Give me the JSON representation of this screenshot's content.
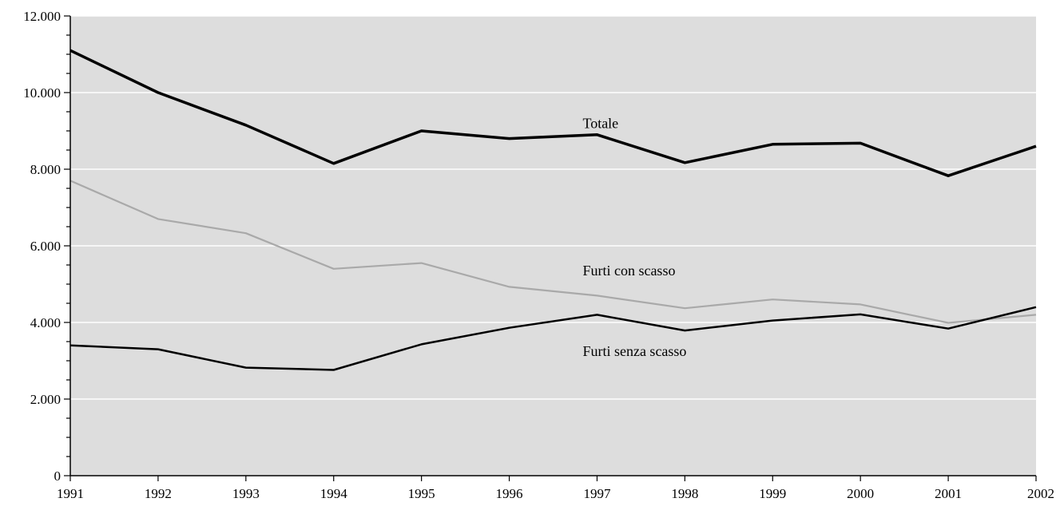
{
  "chart_data": {
    "type": "line",
    "title": "",
    "xlabel": "",
    "ylabel": "",
    "x": [
      "1991",
      "1992",
      "1993",
      "1994",
      "1995",
      "1996",
      "1997",
      "1998",
      "1999",
      "2000",
      "2001",
      "2002"
    ],
    "ylim": [
      0,
      12000
    ],
    "y_ticks": [
      0,
      2000,
      4000,
      6000,
      8000,
      10000,
      12000
    ],
    "y_tick_labels": [
      "0",
      "2.000",
      "4.000",
      "6.000",
      "8.000",
      "10.000",
      "12.000"
    ],
    "grid": "horizontal",
    "background": "#dddddd",
    "series": [
      {
        "name": "Totale",
        "color": "#000000",
        "values": [
          11100,
          10000,
          9150,
          8150,
          9000,
          8800,
          8900,
          8170,
          8650,
          8680,
          7830,
          8600
        ],
        "label_at": [
          1997,
          9200
        ]
      },
      {
        "name": "Furti con scasso",
        "color": "#a9a9a9",
        "values": [
          7700,
          6700,
          6330,
          5400,
          5550,
          4930,
          4700,
          4370,
          4600,
          4470,
          3990,
          4200
        ],
        "label_at": [
          1997,
          5350
        ]
      },
      {
        "name": "Furti senza scasso",
        "color": "#000000",
        "values": [
          3400,
          3300,
          2820,
          2760,
          3430,
          3860,
          4200,
          3790,
          4050,
          4210,
          3840,
          4400
        ],
        "label_at": [
          1997,
          3250
        ]
      }
    ]
  }
}
